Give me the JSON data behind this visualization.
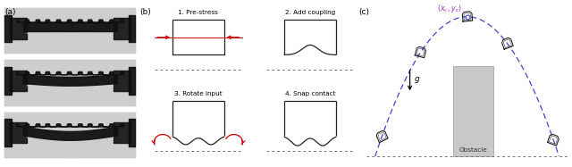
{
  "fig_width": 6.4,
  "fig_height": 1.87,
  "dpi": 100,
  "panel_a_label": "(a)",
  "panel_b_label": "(b)",
  "panel_c_label": "(c)",
  "subplot1_title": "1. Pre-stress",
  "subplot2_title": "2. Add coupling",
  "subplot3_title": "3. Rotate input",
  "subplot4_title": "4. Snap contact",
  "apex_label": "$(x_c, y_c)$",
  "obstacle_label": "Obstacle",
  "gravity_label": "$g$",
  "arrow_color": "#cc0000",
  "traj_color": "#4444cc",
  "obstacle_color": "#c0c0c0",
  "robot_color": "#1a1a1a",
  "apex_label_color": "#aa22cc",
  "box_color": "#222222",
  "dot_color": "#777777"
}
